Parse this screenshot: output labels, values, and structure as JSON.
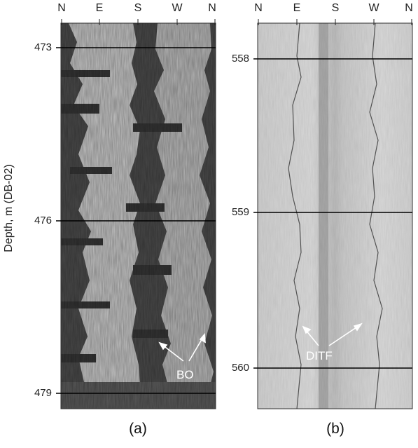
{
  "figure": {
    "y_axis_label": "Depth, m (DB-02)",
    "panels": [
      {
        "caption": "(a)",
        "compass": [
          "N",
          "E",
          "S",
          "W",
          "N"
        ],
        "depth_ticks": [
          "473",
          "476",
          "479"
        ],
        "annotation": "BO"
      },
      {
        "caption": "(b)",
        "compass": [
          "N",
          "E",
          "S",
          "W",
          "N"
        ],
        "depth_ticks": [
          "558",
          "559",
          "560"
        ],
        "annotation": "DITF"
      }
    ]
  },
  "colors": {
    "panel_a_dark": "#4a4a4a",
    "panel_a_light": "#c8c8c8",
    "panel_b_bg": "#d6d6d6",
    "annotation": "#ffffff"
  }
}
